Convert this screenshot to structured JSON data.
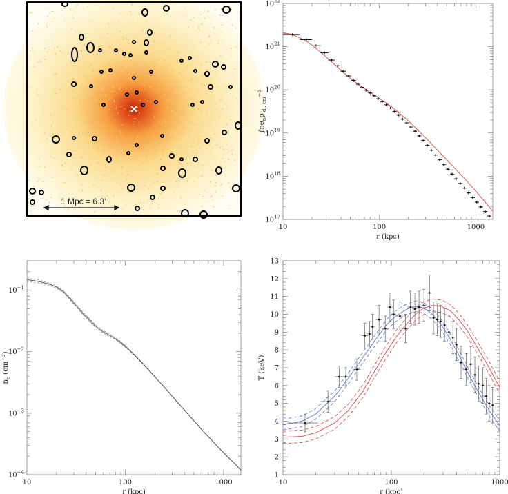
{
  "colors": {
    "axis": "#888888",
    "data": "#111111",
    "model_red": "#e05050",
    "model_blue": "#6a7ad8",
    "profile_grey": "#9a9a9a",
    "xray_core": "#c83410",
    "xray_halo": "#f6c060",
    "marker": "#ffffff"
  },
  "image_panel": {
    "scale_label": "1 Mpc = 6.3’",
    "center_marker": "cross-marker-icon"
  },
  "chart_data": [
    {
      "type": "line",
      "panel": "top-right",
      "xlabel": "r (kpc)",
      "ylabel_parts": [
        "∫n",
        "e",
        "n",
        "p",
        " dl, cm",
        "−5"
      ],
      "xscale": "log",
      "yscale": "log",
      "xlim": [
        10,
        1500
      ],
      "ylim": [
        1e+17,
        1e+22
      ],
      "xticks": [
        {
          "v": 10,
          "label": "10"
        },
        {
          "v": 100,
          "label": "100"
        },
        {
          "v": 1000,
          "label": "1000"
        }
      ],
      "yticks": [
        {
          "v": 1e+17,
          "base": "10",
          "exp": "17"
        },
        {
          "v": 1e+18,
          "base": "10",
          "exp": "18"
        },
        {
          "v": 1e+19,
          "base": "10",
          "exp": "19"
        },
        {
          "v": 1e+20,
          "base": "10",
          "exp": "20"
        },
        {
          "v": 1e+21,
          "base": "10",
          "exp": "21"
        },
        {
          "v": 1e+22,
          "base": "10",
          "exp": "22"
        }
      ],
      "series": [
        {
          "kind": "points",
          "x": [
            12.5,
            17.5,
            22,
            27,
            32,
            37,
            42,
            48,
            54,
            60,
            66,
            73,
            80,
            88,
            97,
            107,
            118,
            130,
            143,
            158,
            174,
            192,
            212,
            234,
            258,
            285,
            314,
            347,
            383,
            422,
            466,
            514,
            567,
            626,
            690,
            762,
            840,
            927,
            1023,
            1130,
            1250,
            1380
          ],
          "y": [
            1.9e+21,
            1.45e+21,
            1.05e+21,
            7.2e+20,
            4.9e+20,
            3.6e+20,
            2.7e+20,
            2.1e+20,
            1.65e+20,
            1.35e+20,
            1.15e+20,
            9.8e+19,
            8.5e+19,
            7.3e+19,
            6.2e+19,
            5.3e+19,
            4.5e+19,
            3.8e+19,
            3.15e+19,
            2.6e+19,
            2.1e+19,
            1.72e+19,
            1.38e+19,
            1.1e+19,
            8.6e+18,
            6.7e+18,
            5.2e+18,
            4e+18,
            3.1e+18,
            2.4e+18,
            1.85e+18,
            1.45e+18,
            1.12e+18,
            8.7e+17,
            6.8e+17,
            5.3e+17,
            4.1e+17,
            3.2e+17,
            2.5e+17,
            1.95e+17,
            1.52e+17,
            1.2e+17
          ],
          "xlo": [
            10,
            15,
            20,
            24.5,
            29.5,
            34.5,
            39.5,
            45,
            51,
            57,
            63,
            69.5,
            76.5,
            84,
            92.5,
            102,
            112.5,
            124,
            136.5,
            150.5,
            166,
            183,
            202,
            223,
            246,
            271.5,
            299.5,
            330.5,
            365,
            402.5,
            444,
            490,
            540.5,
            596.5,
            658,
            726,
            801,
            883.5,
            975,
            1076.5,
            1190,
            1315
          ],
          "xhi": [
            15,
            20,
            24.5,
            29.5,
            34.5,
            39.5,
            45,
            51,
            57,
            63,
            69.5,
            76.5,
            84,
            92.5,
            102,
            112.5,
            124,
            136.5,
            150.5,
            166,
            183,
            202,
            223,
            246,
            271.5,
            299.5,
            330.5,
            365,
            402.5,
            444,
            490,
            540.5,
            596.5,
            658,
            726,
            801,
            883.5,
            975,
            1076.5,
            1190,
            1315,
            1450
          ]
        },
        {
          "kind": "model",
          "x": [
            10,
            12,
            15,
            18,
            22,
            27,
            33,
            40,
            50,
            60,
            75,
            90,
            110,
            140,
            170,
            210,
            260,
            320,
            400,
            500,
            620,
            780,
            960,
            1200,
            1500
          ],
          "y": [
            2.1e+21,
            1.95e+21,
            1.6e+21,
            1.28e+21,
            9.2e+20,
            6.2e+20,
            4.2e+20,
            2.85e+20,
            1.85e+20,
            1.35e+20,
            9.6e+19,
            7.4e+19,
            5.5e+19,
            3.75e+19,
            2.6e+19,
            1.72e+19,
            1.08e+19,
            6.8e+18,
            4e+18,
            2.4e+18,
            1.45e+18,
            8.4e+17,
            5e+17,
            2.8e+17,
            1.55e+17
          ]
        }
      ]
    },
    {
      "type": "line",
      "panel": "bottom-left",
      "xlabel": "r (kpc)",
      "ylabel_parts": [
        "n",
        "e",
        " (cm",
        "−3",
        ")"
      ],
      "xscale": "log",
      "yscale": "log",
      "xlim": [
        10,
        1500
      ],
      "ylim": [
        0.0001,
        0.3
      ],
      "xticks": [
        {
          "v": 10,
          "label": "10"
        },
        {
          "v": 100,
          "label": "100"
        },
        {
          "v": 1000,
          "label": "1000"
        }
      ],
      "yticks": [
        {
          "v": 0.0001,
          "base": "10",
          "exp": "−4"
        },
        {
          "v": 0.001,
          "base": "10",
          "exp": "−3"
        },
        {
          "v": 0.01,
          "base": "10",
          "exp": "−2"
        },
        {
          "v": 0.1,
          "base": "10",
          "exp": "−1"
        }
      ],
      "series": [
        {
          "kind": "band",
          "x": [
            10,
            12,
            14,
            17,
            20,
            24,
            28,
            33,
            38,
            44,
            50,
            57,
            65,
            75,
            88,
            100,
            120,
            150,
            180,
            220,
            270,
            330,
            400,
            500,
            600,
            750,
            900,
            1100,
            1300,
            1500
          ],
          "y": [
            0.148,
            0.142,
            0.135,
            0.125,
            0.112,
            0.092,
            0.07,
            0.052,
            0.04,
            0.032,
            0.026,
            0.022,
            0.0195,
            0.0172,
            0.0145,
            0.0122,
            0.0093,
            0.0065,
            0.0047,
            0.0033,
            0.0023,
            0.00158,
            0.00112,
            0.00075,
            0.00054,
            0.00037,
            0.00027,
            0.000195,
            0.000152,
            0.000118
          ],
          "spread": [
            0.06,
            0.055,
            0.05,
            0.045,
            0.04,
            0.04,
            0.045,
            0.05,
            0.05,
            0.05,
            0.05,
            0.05,
            0.045,
            0.04,
            0.035,
            0.03,
            0.02,
            0.015,
            0.01,
            0.008,
            0.006,
            0.005,
            0.004,
            0.003,
            0.003,
            0.002,
            0.002,
            0.002,
            0.002,
            0.002
          ]
        }
      ]
    },
    {
      "type": "line",
      "panel": "bottom-right",
      "xlabel": "r (kpc)",
      "ylabel": "T (keV)",
      "xscale": "log",
      "yscale": "linear",
      "xlim": [
        10,
        1000
      ],
      "ylim": [
        1,
        13
      ],
      "xticks": [
        {
          "v": 10,
          "label": "10"
        },
        {
          "v": 100,
          "label": "100"
        },
        {
          "v": 1000,
          "label": "1000"
        }
      ],
      "yticks": [
        1,
        2,
        3,
        4,
        5,
        6,
        7,
        8,
        9,
        10,
        11,
        12,
        13
      ],
      "series": [
        {
          "kind": "points",
          "x": [
            16,
            26,
            33,
            38,
            48,
            57,
            63,
            67,
            77,
            88,
            97,
            105,
            120,
            135,
            150,
            165,
            180,
            200,
            225,
            245,
            265,
            285,
            310,
            340,
            370,
            400,
            440,
            490,
            540,
            590,
            640,
            700,
            750,
            800,
            860
          ],
          "y": [
            3.9,
            5.1,
            6.5,
            6.5,
            6.9,
            8.8,
            8.9,
            9.3,
            9.7,
            9.2,
            10.4,
            10.0,
            9.9,
            9.2,
            10.4,
            10.3,
            10.4,
            10.5,
            11.2,
            9.8,
            9.7,
            9.6,
            9.4,
            9.0,
            8.7,
            8.3,
            7.3,
            6.9,
            7.2,
            6.6,
            6.1,
            6.0,
            5.4,
            5.0,
            4.9
          ],
          "yerr": [
            0.5,
            0.6,
            0.6,
            0.5,
            0.6,
            0.7,
            0.7,
            0.7,
            0.8,
            0.7,
            0.8,
            0.8,
            0.8,
            0.8,
            0.9,
            0.9,
            0.9,
            0.9,
            1.0,
            0.9,
            0.9,
            0.9,
            0.9,
            0.9,
            0.9,
            0.9,
            0.9,
            0.9,
            1.0,
            1.0,
            1.0,
            1.0,
            1.0,
            1.0,
            1.0
          ],
          "xlo": [
            11,
            22,
            30,
            35,
            44,
            53,
            60,
            64,
            72,
            82,
            91,
            99,
            112,
            126,
            141,
            156,
            171,
            190,
            213,
            236,
            256,
            276,
            298,
            326,
            356,
            385,
            420,
            466,
            516,
            566,
            616,
            670,
            726,
            776,
            830
          ],
          "xhi": [
            21,
            30,
            36,
            41,
            52,
            61,
            66,
            70,
            82,
            94,
            103,
            111,
            128,
            144,
            159,
            174,
            189,
            210,
            237,
            254,
            274,
            294,
            322,
            354,
            384,
            415,
            460,
            514,
            564,
            614,
            664,
            730,
            774,
            824,
            890
          ]
        },
        {
          "kind": "model_blue",
          "x": [
            10,
            15,
            20,
            30,
            40,
            55,
            70,
            90,
            110,
            140,
            170,
            200,
            240,
            290,
            350,
            420,
            500,
            600,
            700,
            800,
            900,
            1000
          ],
          "y": [
            3.8,
            4.0,
            4.4,
            5.4,
            6.4,
            7.6,
            8.5,
            9.4,
            9.9,
            10.3,
            10.45,
            10.35,
            10.0,
            9.4,
            8.6,
            7.7,
            6.8,
            5.9,
            5.2,
            4.6,
            4.15,
            3.75
          ],
          "spread": 0.3
        },
        {
          "kind": "model_red",
          "x": [
            10,
            15,
            20,
            30,
            40,
            55,
            70,
            90,
            110,
            140,
            170,
            200,
            240,
            290,
            350,
            420,
            500,
            600,
            700,
            800,
            900,
            1000
          ],
          "y": [
            3.1,
            3.15,
            3.35,
            3.9,
            4.6,
            5.7,
            6.8,
            7.9,
            8.7,
            9.5,
            10.05,
            10.35,
            10.5,
            10.45,
            10.2,
            9.7,
            9.1,
            8.3,
            7.6,
            7.0,
            6.4,
            5.9
          ],
          "spread": 0.35
        }
      ]
    }
  ]
}
